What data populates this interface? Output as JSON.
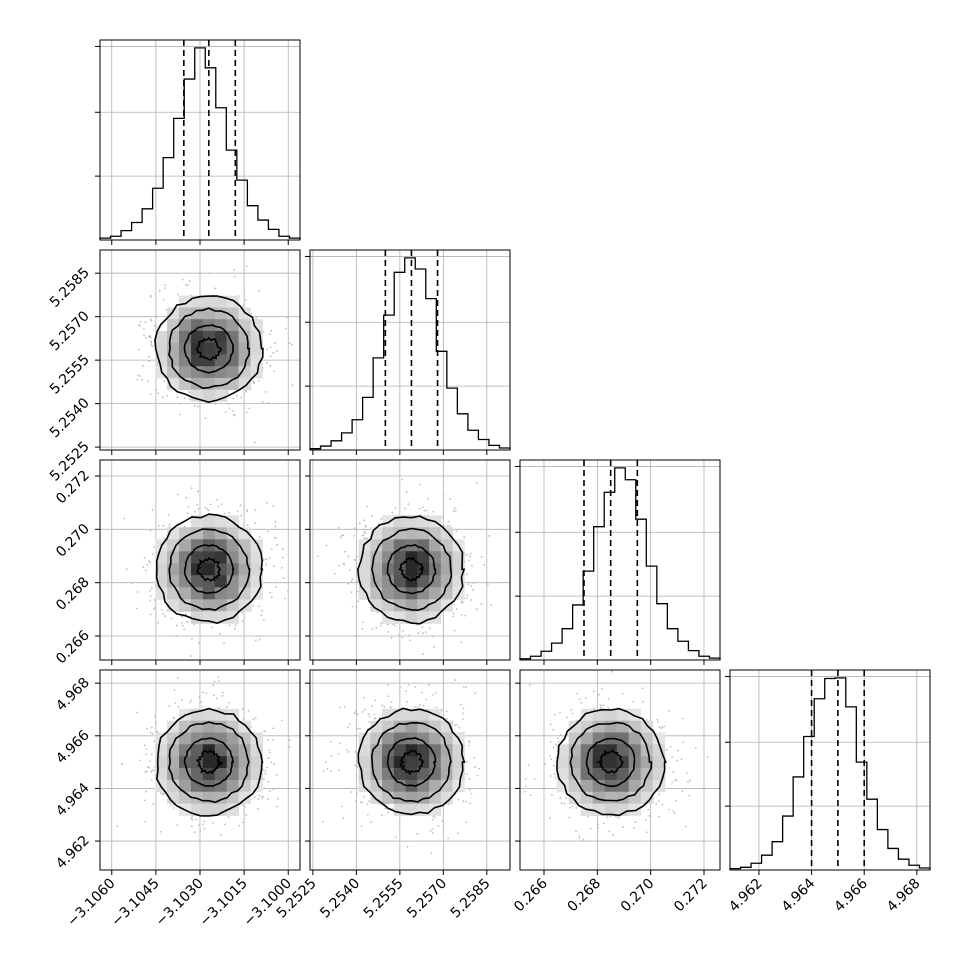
{
  "chart_data": {
    "type": "corner",
    "parameters": [
      {
        "range": [
          -3.1064,
          -3.0996
        ],
        "ticks": [
          -3.106,
          -3.1045,
          -3.103,
          -3.1015,
          -3.1
        ],
        "tick_labels": [
          "−3.1060",
          "−3.1045",
          "−3.1030",
          "−3.1015",
          "−3.1000"
        ],
        "mean": -3.1027,
        "quantiles": [
          -3.10355,
          -3.1027,
          -3.1018
        ],
        "sigma": 0.0009,
        "hist": [
          0.3,
          0.6,
          1.5,
          2.8,
          5.0,
          8.3,
          13.2,
          19.5,
          25.8,
          30.8,
          27.6,
          21.2,
          14.4,
          9.6,
          5.5,
          3.2,
          1.7,
          0.6,
          0.3
        ]
      },
      {
        "range": [
          5.2524,
          5.2593
        ],
        "ticks": [
          5.2525,
          5.254,
          5.2555,
          5.257,
          5.2585
        ],
        "tick_labels": [
          "5.2525",
          "5.2540",
          "5.2555",
          "5.2570",
          "5.2585"
        ],
        "mean": 5.2559,
        "quantiles": [
          5.255,
          5.2559,
          5.2568
        ],
        "sigma": 0.0009,
        "hist": [
          0.2,
          0.6,
          1.4,
          2.6,
          4.6,
          8.0,
          14.0,
          20.5,
          27.0,
          29.2,
          27.5,
          23.0,
          15.0,
          9.4,
          5.5,
          3.0,
          1.6,
          0.7,
          0.3
        ]
      },
      {
        "range": [
          0.2651,
          0.2726
        ],
        "ticks": [
          0.266,
          0.268,
          0.27,
          0.272
        ],
        "tick_labels": [
          "0.266",
          "0.268",
          "0.270",
          "0.272"
        ],
        "mean": 0.2685,
        "quantiles": [
          0.2675,
          0.2685,
          0.2695
        ],
        "sigma": 0.001,
        "hist": [
          0.2,
          0.6,
          1.4,
          2.7,
          5.0,
          8.8,
          14.2,
          21.3,
          26.8,
          30.7,
          28.8,
          22.5,
          15.0,
          9.0,
          5.0,
          3.0,
          1.5,
          0.6,
          0.3
        ]
      },
      {
        "range": [
          4.9609,
          4.9685
        ],
        "ticks": [
          4.962,
          4.964,
          4.966,
          4.968
        ],
        "tick_labels": [
          "4.962",
          "4.964",
          "4.966",
          "4.968"
        ],
        "mean": 4.965,
        "quantiles": [
          4.964,
          4.965,
          4.966
        ],
        "sigma": 0.001,
        "hist": [
          0.2,
          0.4,
          1.0,
          2.2,
          4.2,
          8.0,
          13.8,
          19.8,
          25.4,
          28.4,
          28.5,
          24.2,
          16.0,
          10.5,
          6.0,
          3.2,
          1.6,
          0.7,
          0.3
        ]
      }
    ],
    "quantile_levels": [
      0.16,
      0.5,
      0.84
    ],
    "contour_sigma_levels": [
      0.4,
      0.9,
      1.5,
      2.0
    ],
    "grid": true,
    "samples_shown": "scatter + 2D histogram + contours"
  }
}
